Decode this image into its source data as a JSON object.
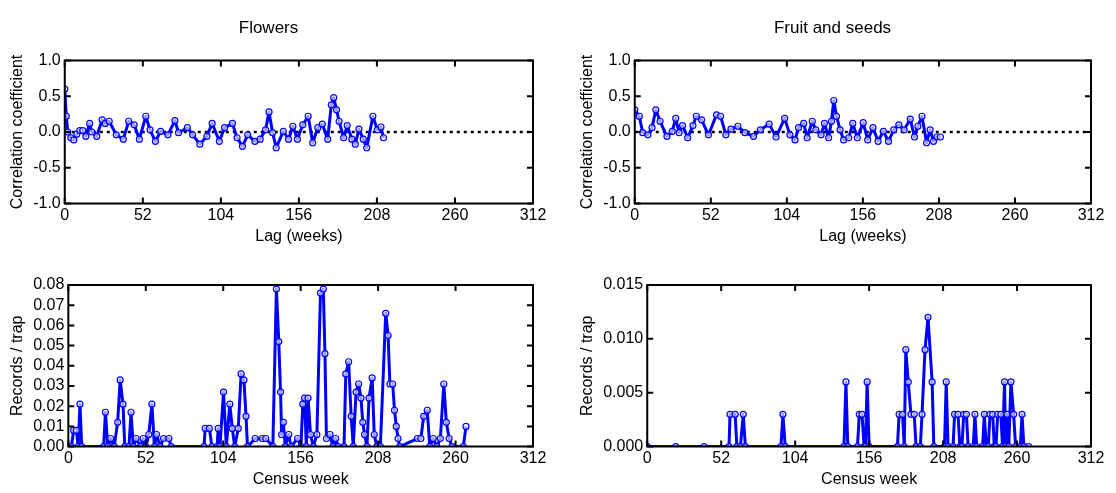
{
  "chart_data": [
    {
      "type": "line",
      "title": "Flowers",
      "xlabel": "Lag (weeks)",
      "ylabel": "Correlation coefficient",
      "xlim": [
        0,
        312
      ],
      "xticks": [
        0,
        52,
        104,
        156,
        208,
        260,
        312
      ],
      "ylim": [
        -1,
        1
      ],
      "yticks": [
        {
          "value": -1,
          "label": "-1.0"
        },
        {
          "value": -0.5,
          "label": "-0.5"
        },
        {
          "value": 0,
          "label": "0.0"
        },
        {
          "value": 0.5,
          "label": "0.5"
        },
        {
          "value": 1,
          "label": "1.0"
        }
      ],
      "marker": "circle",
      "grid": false,
      "legend": false,
      "ref_lines": [
        {
          "axis": "y",
          "value": 0,
          "color": "#000000",
          "line_style": "dotted"
        }
      ],
      "series": [
        {
          "color": "#0000ff",
          "x": [
            0,
            1,
            2,
            4,
            6,
            8,
            10,
            12,
            14,
            16.6,
            18,
            21.3,
            24.9,
            27,
            29.6,
            34.3,
            39,
            42.6,
            46.2,
            49.7,
            54,
            56.8,
            60.4,
            63.9,
            68.7,
            73.4,
            75.8,
            81.7,
            85.2,
            90,
            94.7,
            98.2,
            103,
            106.5,
            111.7,
            114.8,
            118.4,
            121.9,
            126.7,
            130.2,
            133.8,
            136.1,
            138.5,
            140.9,
            145.6,
            149.1,
            152,
            155,
            158.6,
            162.2,
            165.2,
            168.6,
            171.6,
            175.2,
            177.6,
            179.2,
            181.1,
            182.8,
            185.8,
            188.2,
            191.3,
            193.6,
            196,
            198.9,
            201.2,
            205.3,
            208.3,
            210.7,
            212.4
          ],
          "values": [
            0.6,
            0.22,
            0.0,
            -0.08,
            -0.11,
            -0.03,
            0.02,
            0.02,
            -0.06,
            0.12,
            0.0,
            -0.06,
            0.17,
            0.12,
            0.15,
            -0.04,
            -0.1,
            0.15,
            0.1,
            -0.1,
            0.22,
            0.03,
            -0.13,
            0.01,
            -0.04,
            0.16,
            -0.01,
            0.06,
            -0.04,
            -0.17,
            -0.06,
            0.12,
            -0.13,
            0.06,
            0.12,
            -0.08,
            -0.2,
            -0.04,
            -0.13,
            -0.1,
            0.03,
            0.28,
            -0.01,
            -0.22,
            0.01,
            -0.1,
            0.08,
            -0.1,
            0.1,
            0.22,
            -0.15,
            0.06,
            0.11,
            -0.1,
            0.38,
            0.48,
            0.31,
            0.15,
            -0.08,
            0.09,
            -0.1,
            -0.17,
            0.04,
            -0.1,
            -0.22,
            0.22,
            0.03,
            0.07,
            -0.08
          ]
        }
      ]
    },
    {
      "type": "line",
      "title": "Fruit and seeds",
      "xlabel": "Lag (weeks)",
      "ylabel": "Correlation coefficient",
      "xlim": [
        0,
        312
      ],
      "xticks": [
        0,
        52,
        104,
        156,
        208,
        260,
        312
      ],
      "ylim": [
        -1,
        1
      ],
      "yticks": [
        {
          "value": -1,
          "label": "-1.0"
        },
        {
          "value": -0.5,
          "label": "-0.5"
        },
        {
          "value": 0,
          "label": "0.0"
        },
        {
          "value": 0.5,
          "label": "0.5"
        },
        {
          "value": 1,
          "label": "1.0"
        }
      ],
      "marker": "circle",
      "grid": false,
      "legend": false,
      "ref_lines": [
        {
          "axis": "y",
          "value": 0,
          "color": "#000000",
          "line_style": "dotted"
        }
      ],
      "series": [
        {
          "color": "#0000ff",
          "x": [
            0,
            3.1,
            5.4,
            9,
            11.8,
            14.4,
            17.3,
            22,
            25.6,
            28,
            30.3,
            32.7,
            36.2,
            39.8,
            42.1,
            45.7,
            50.4,
            55.9,
            58.7,
            62.3,
            65.8,
            70.5,
            75.3,
            81.2,
            85.9,
            91.9,
            96.6,
            102.5,
            106.1,
            109.6,
            112,
            115.5,
            117.9,
            121.4,
            123.8,
            127.4,
            129.7,
            132.6,
            134.5,
            136.1,
            138,
            140.4,
            142.8,
            146.3,
            149.1,
            152.2,
            156.2,
            159.3,
            162.9,
            166.4,
            170,
            173.5,
            177.1,
            180.6,
            184.2,
            188.4,
            191.3,
            193.6,
            196.4,
            199.6,
            202,
            204.3,
            206.7,
            209
          ],
          "values": [
            0.31,
            0.22,
            -0.01,
            -0.04,
            0.06,
            0.31,
            0.15,
            -0.06,
            0.01,
            0.19,
            -0.01,
            0.09,
            -0.08,
            0.09,
            0.22,
            0.17,
            -0.04,
            0.24,
            0.22,
            -0.04,
            0.04,
            0.08,
            -0.01,
            -0.06,
            0.03,
            0.11,
            -0.07,
            0.19,
            -0.04,
            -0.11,
            0.06,
            0.12,
            -0.08,
            0.15,
            0.03,
            -0.04,
            0.12,
            -0.08,
            0.15,
            0.44,
            0.22,
            0.03,
            -0.11,
            -0.08,
            0.12,
            -0.08,
            0.13,
            -0.11,
            0.06,
            -0.13,
            0.01,
            -0.13,
            0.03,
            0.1,
            0.03,
            0.18,
            -0.07,
            0.08,
            0.22,
            -0.15,
            0.03,
            -0.13,
            -0.07,
            -0.07
          ]
        }
      ]
    },
    {
      "type": "line",
      "xlabel": "Census week",
      "ylabel": "Records / trap",
      "xlim": [
        0,
        312
      ],
      "xticks": [
        0,
        52,
        104,
        156,
        208,
        260,
        312
      ],
      "ylim": [
        0,
        0.08
      ],
      "yticks": [
        {
          "value": 0,
          "label": "0.00"
        },
        {
          "value": 0.01,
          "label": "0.01"
        },
        {
          "value": 0.02,
          "label": "0.02"
        },
        {
          "value": 0.03,
          "label": "0.03"
        },
        {
          "value": 0.04,
          "label": "0.04"
        },
        {
          "value": 0.05,
          "label": "0.05"
        },
        {
          "value": 0.06,
          "label": "0.06"
        },
        {
          "value": 0.07,
          "label": "0.07"
        },
        {
          "value": 0.08,
          "label": "0.08"
        }
      ],
      "marker": "circle",
      "grid": false,
      "legend": false,
      "series": [
        {
          "color": "#0000ff",
          "x": [
            0,
            2,
            3.6,
            5.4,
            6.6,
            7.8,
            9,
            23.7,
            24.9,
            26.5,
            28.4,
            30.8,
            33.1,
            34.8,
            36.7,
            37.9,
            40.7,
            42.1,
            43.6,
            45.5,
            48.5,
            50.2,
            52.1,
            54,
            56.1,
            57.8,
            59.2,
            61.6,
            63.9,
            67.5,
            69.1,
            91.1,
            91.9,
            94.7,
            96.4,
            99.9,
            100.6,
            101.8,
            104.2,
            106.1,
            108.4,
            110.1,
            111.7,
            114.1,
            116,
            117.9,
            119.3,
            120.3,
            125.5,
            130.2,
            132.6,
            137.3,
            139.7,
            141.3,
            142.5,
            143.2,
            144.4,
            145.6,
            148,
            149.6,
            153.9,
            156.2,
            157.4,
            158.6,
            159.8,
            161,
            162.6,
            164.5,
            166.9,
            169.3,
            171.2,
            172.3,
            173.3,
            175.7,
            177.6,
            179.5,
            181.1,
            185.1,
            186.3,
            188.2,
            189.9,
            191.3,
            193.2,
            194.9,
            196.5,
            197.7,
            198.9,
            200.5,
            201.9,
            204,
            205.4,
            207.2,
            209.5,
            213.1,
            214.7,
            215.9,
            217.8,
            219,
            220.2,
            221.4,
            222.5,
            234.4,
            236.7,
            238.6,
            241,
            242.7,
            245,
            247.4,
            249.8,
            252.1,
            253.8,
            255.7,
            257.6,
            265.2,
            267
          ],
          "values": [
            0,
            0,
            0.008,
            0.008,
            0,
            0.021,
            0,
            0,
            0.017,
            0,
            0.004,
            0,
            0.012,
            0.033,
            0.021,
            0,
            0,
            0.017,
            0,
            0.004,
            0,
            0.004,
            0,
            0.006,
            0.021,
            0,
            0.006,
            0,
            0.004,
            0.004,
            0,
            0,
            0.009,
            0.009,
            0,
            0,
            0.009,
            0,
            0.027,
            0,
            0.021,
            0.009,
            0,
            0.009,
            0.036,
            0.033,
            0.015,
            0,
            0.004,
            0.004,
            0.004,
            0,
            0.078,
            0.052,
            0.027,
            0.006,
            0.012,
            0,
            0.006,
            0,
            0.004,
            0,
            0.021,
            0.024,
            0,
            0.024,
            0.006,
            0,
            0.006,
            0.076,
            0.078,
            0.046,
            0.004,
            0.006,
            0,
            0.004,
            0,
            0,
            0.036,
            0.042,
            0.015,
            0,
            0.027,
            0.031,
            0.024,
            0.012,
            0.006,
            0,
            0.024,
            0.034,
            0.006,
            0,
            0,
            0.066,
            0.055,
            0.031,
            0.031,
            0.018,
            0.01,
            0.004,
            0,
            0.004,
            0.004,
            0.015,
            0.018,
            0,
            0.004,
            0,
            0.004,
            0.031,
            0.012,
            0.004,
            0,
            0,
            0.01
          ]
        }
      ]
    },
    {
      "type": "line",
      "xlabel": "Census week",
      "ylabel": "Records / trap",
      "xlim": [
        0,
        312
      ],
      "xticks": [
        0,
        52,
        104,
        156,
        208,
        260,
        312
      ],
      "ylim": [
        0,
        0.015
      ],
      "yticks": [
        {
          "value": 0,
          "label": "0.000"
        },
        {
          "value": 0.005,
          "label": "0.005"
        },
        {
          "value": 0.01,
          "label": "0.010"
        },
        {
          "value": 0.015,
          "label": "0.015"
        }
      ],
      "marker": "circle",
      "grid": false,
      "legend": false,
      "series": [
        {
          "color": "#0000ff",
          "x": [
            0,
            20,
            40,
            57.5,
            58.2,
            61.8,
            63,
            65.5,
            67.5,
            69,
            94,
            95.4,
            97,
            138.3,
            139.7,
            141,
            147.8,
            149.1,
            151,
            152.5,
            153.4,
            154.6,
            156,
            175.9,
            177.1,
            179.5,
            180.7,
            181.8,
            183.5,
            185.4,
            187.7,
            189,
            192,
            193.2,
            195.3,
            197.4,
            200.3,
            201.5,
            209,
            210.2,
            211.5,
            215,
            216.1,
            218.5,
            219.8,
            221.3,
            222.5,
            224.4,
            225.6,
            229.2,
            230.4,
            231.6,
            235.8,
            237,
            238.3,
            239.8,
            241,
            242.9,
            244,
            245.2,
            246.4,
            248.6,
            249.8,
            251.2,
            252,
            252.8,
            254.2,
            255.7,
            257.6,
            259,
            262.3,
            263.5,
            264.8,
            268.2
          ],
          "values": [
            0,
            0,
            0,
            0,
            0.003,
            0.003,
            0,
            0,
            0.003,
            0,
            0,
            0.003,
            0,
            0,
            0.006,
            0,
            0,
            0.003,
            0.003,
            0,
            0,
            0.006,
            0,
            0,
            0.003,
            0.003,
            0,
            0.009,
            0.006,
            0.003,
            0.003,
            0,
            0,
            0.003,
            0.009,
            0.012,
            0.006,
            0,
            0,
            0.006,
            0,
            0,
            0.003,
            0.003,
            0,
            0,
            0.003,
            0.003,
            0,
            0,
            0.003,
            0,
            0,
            0.003,
            0,
            0,
            0.003,
            0.003,
            0,
            0,
            0.003,
            0.003,
            0,
            0.006,
            0,
            0.003,
            0,
            0.006,
            0.003,
            0,
            0,
            0.003,
            0,
            0
          ]
        }
      ]
    }
  ]
}
